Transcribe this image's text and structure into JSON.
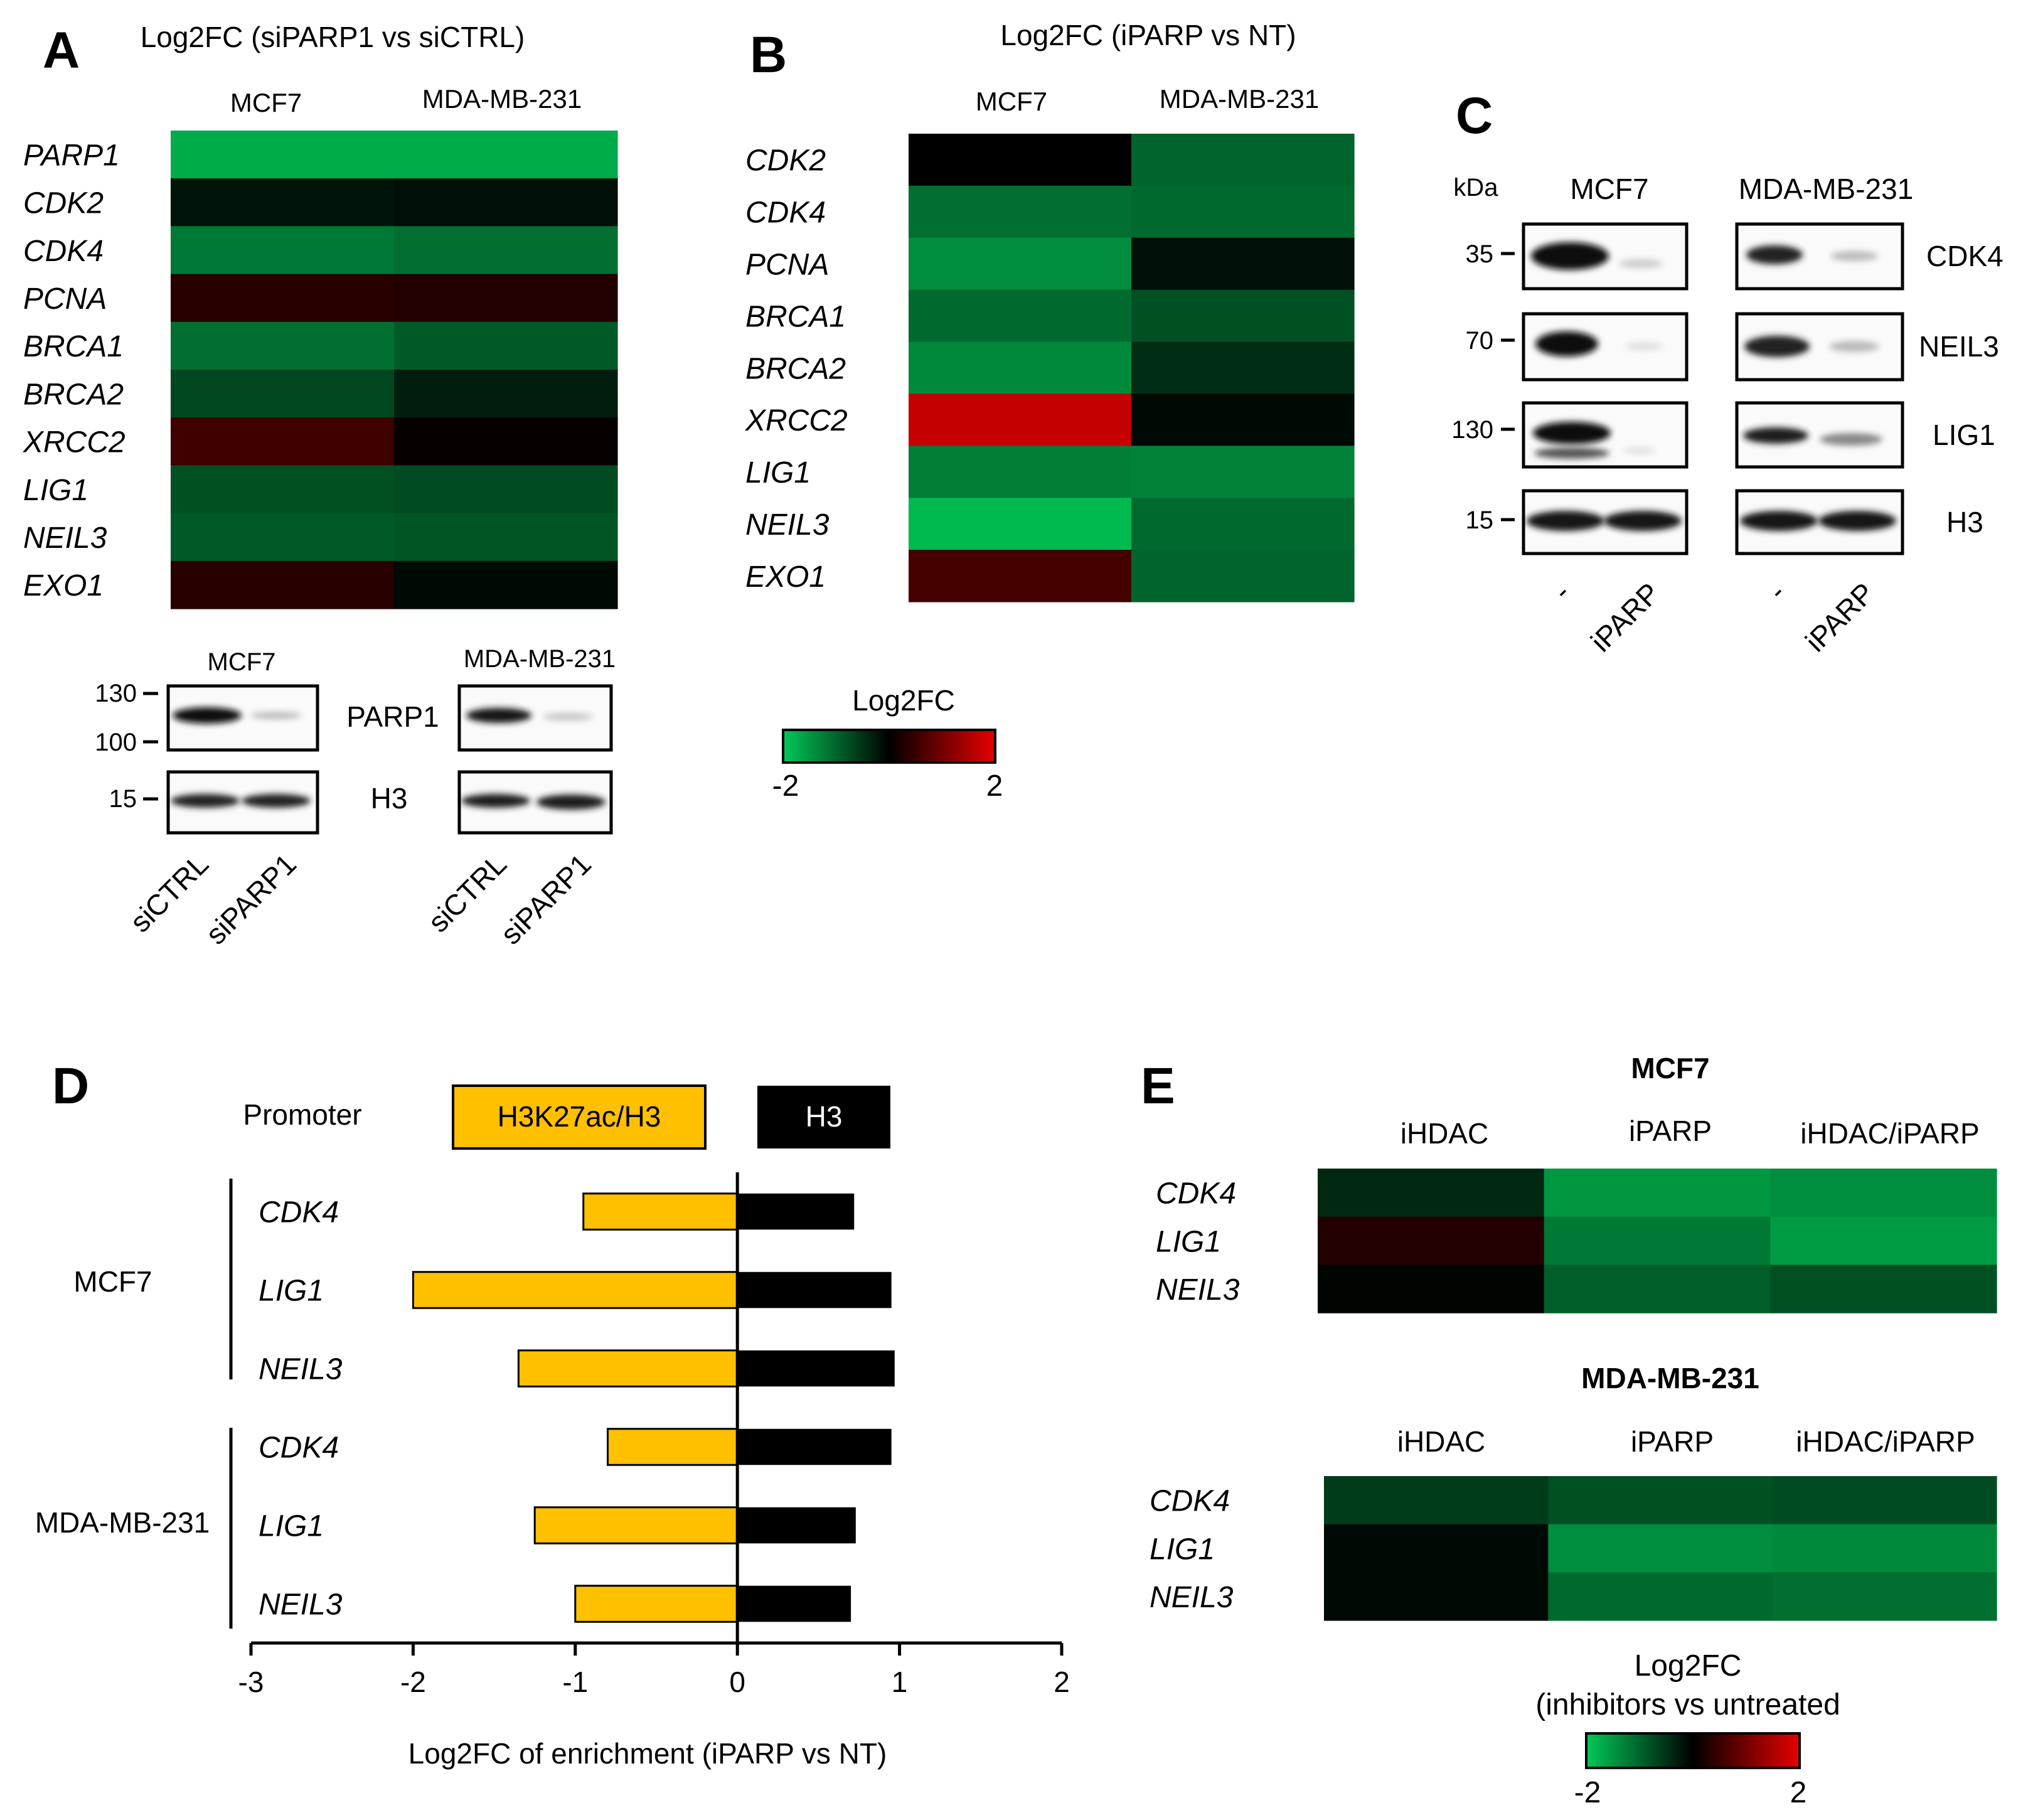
{
  "colors": {
    "scale_low": "#00c957",
    "scale_mid": "#000000",
    "scale_high": "#e60000",
    "h3k27ac_bar": "#ffc000",
    "h3_bar": "#000000"
  },
  "panel_a": {
    "letter": "A",
    "title": "Log2FC (siPARP1 vs siCTRL)",
    "columns": [
      "MCF7",
      "MDA-MB-231"
    ],
    "genes": [
      "PARP1",
      "CDK2",
      "CDK4",
      "PCNA",
      "BRCA1",
      "BRCA2",
      "XRCC2",
      "LIG1",
      "NEIL3",
      "EXO1"
    ],
    "values": [
      [
        -1.7,
        -1.7
      ],
      [
        -0.2,
        -0.15
      ],
      [
        -1.2,
        -1.1
      ],
      [
        0.35,
        0.3
      ],
      [
        -1.1,
        -0.9
      ],
      [
        -0.7,
        -0.3
      ],
      [
        0.55,
        0.05
      ],
      [
        -0.8,
        -0.75
      ],
      [
        -0.9,
        -0.85
      ],
      [
        0.35,
        -0.1
      ]
    ],
    "western": {
      "groups": [
        {
          "name": "MCF7",
          "lanes": [
            "siCTRL",
            "siPARP1"
          ]
        },
        {
          "name": "MDA-MB-231",
          "lanes": [
            "siCTRL",
            "siPARP1"
          ]
        }
      ],
      "rows": [
        {
          "protein": "PARP1",
          "markers": [
            "130",
            "100"
          ]
        },
        {
          "protein": "H3",
          "markers": [
            "15"
          ]
        }
      ]
    }
  },
  "panel_b": {
    "letter": "B",
    "title": "Log2FC (iPARP vs NT)",
    "columns": [
      "MCF7",
      "MDA-MB-231"
    ],
    "genes": [
      "CDK2",
      "CDK4",
      "PCNA",
      "BRCA1",
      "BRCA2",
      "XRCC2",
      "LIG1",
      "NEIL3",
      "EXO1"
    ],
    "values": [
      [
        0.0,
        -1.0
      ],
      [
        -1.1,
        -1.05
      ],
      [
        -1.4,
        -0.15
      ],
      [
        -1.05,
        -0.8
      ],
      [
        -1.35,
        -0.45
      ],
      [
        1.7,
        -0.1
      ],
      [
        -1.25,
        -1.3
      ],
      [
        -1.85,
        -1.05
      ],
      [
        0.6,
        -1.0
      ]
    ],
    "colorbar": {
      "label": "Log2FC",
      "min": "-2",
      "max": "2"
    }
  },
  "panel_c": {
    "letter": "C",
    "unit_label": "kDa",
    "groups": [
      {
        "name": "MCF7",
        "lanes": [
          "-",
          "iPARP"
        ]
      },
      {
        "name": "MDA-MB-231",
        "lanes": [
          "-",
          "iPARP"
        ]
      }
    ],
    "rows": [
      {
        "protein": "CDK4",
        "marker": "35"
      },
      {
        "protein": "NEIL3",
        "marker": "70"
      },
      {
        "protein": "LIG1",
        "marker": "130"
      },
      {
        "protein": "H3",
        "marker": "15"
      }
    ]
  },
  "panel_d": {
    "letter": "D",
    "legend_title": "Promoter",
    "chart_data": {
      "type": "bar",
      "orientation": "horizontal",
      "groups": [
        "MCF7",
        "MDA-MB-231"
      ],
      "categories": [
        "CDK4",
        "LIG1",
        "NEIL3",
        "CDK4",
        "LIG1",
        "NEIL3"
      ],
      "category_groups": [
        "MCF7",
        "MCF7",
        "MCF7",
        "MDA-MB-231",
        "MDA-MB-231",
        "MDA-MB-231"
      ],
      "series": [
        {
          "name": "H3K27ac/H3",
          "values": [
            -0.95,
            -2.0,
            -1.35,
            -0.8,
            -1.25,
            -1.0
          ]
        },
        {
          "name": "H3",
          "values": [
            0.72,
            0.95,
            0.97,
            0.95,
            0.73,
            0.7
          ]
        }
      ],
      "xlabel": "Log2FC of enrichment (iPARP vs NT)",
      "xlim": [
        -3,
        2
      ],
      "xticks": [
        "-3",
        "-2",
        "-1",
        "0",
        "1",
        "2"
      ]
    }
  },
  "panel_e": {
    "letter": "E",
    "heatmaps": [
      {
        "title": "MCF7",
        "columns": [
          "iHDAC",
          "iPARP",
          "iHDAC/iPARP"
        ],
        "genes": [
          "CDK4",
          "LIG1",
          "NEIL3"
        ],
        "values": [
          [
            -0.4,
            -1.5,
            -1.4
          ],
          [
            0.3,
            -1.2,
            -1.55
          ],
          [
            -0.05,
            -0.95,
            -0.8
          ]
        ]
      },
      {
        "title": "MDA-MB-231",
        "columns": [
          "iHDAC",
          "iPARP",
          "iHDAC/iPARP"
        ],
        "genes": [
          "CDK4",
          "LIG1",
          "NEIL3"
        ],
        "values": [
          [
            -0.6,
            -0.8,
            -0.75
          ],
          [
            -0.1,
            -1.4,
            -1.35
          ],
          [
            -0.1,
            -1.05,
            -1.1
          ]
        ]
      }
    ],
    "colorbar": {
      "label_line1": "Log2FC",
      "label_line2": "(inhibitors vs untreated",
      "min": "-2",
      "max": "2"
    }
  }
}
